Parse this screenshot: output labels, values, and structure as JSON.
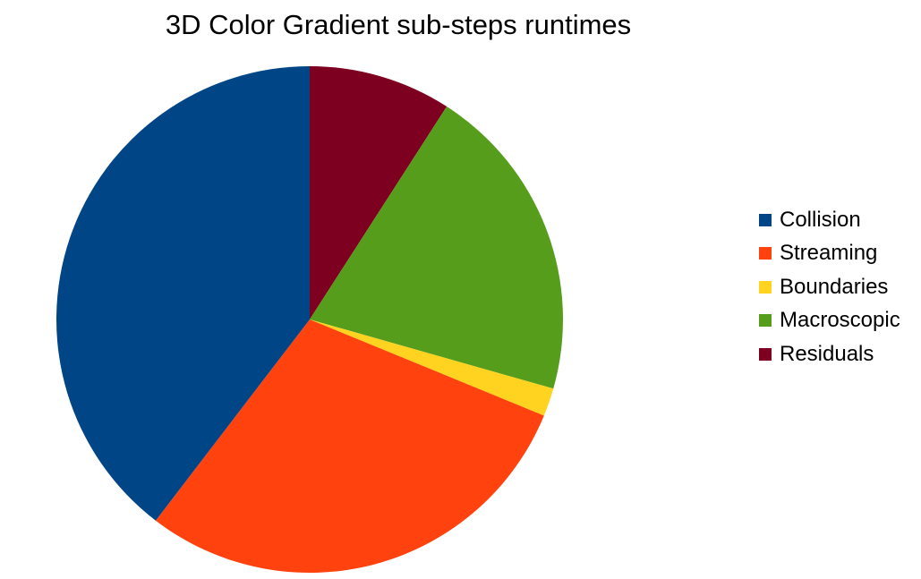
{
  "chart_data": {
    "type": "pie",
    "title": "3D Color Gradient sub-steps runtimes",
    "start_angle_deg": 0,
    "direction": "clockwise",
    "legend_position": "right",
    "slices": [
      {
        "label": "Residuals",
        "value": 9.1,
        "color": "#7E0021"
      },
      {
        "label": "Macroscopic",
        "value": 20.3,
        "color": "#579D1C"
      },
      {
        "label": "Boundaries",
        "value": 1.8,
        "color": "#FFD320"
      },
      {
        "label": "Streaming",
        "value": 29.2,
        "color": "#FF420E"
      },
      {
        "label": "Collision",
        "value": 39.6,
        "color": "#004586"
      }
    ],
    "legend": [
      {
        "label": "Collision",
        "color": "#004586"
      },
      {
        "label": "Streaming",
        "color": "#FF420E"
      },
      {
        "label": "Boundaries",
        "color": "#FFD320"
      },
      {
        "label": "Macroscopic",
        "color": "#579D1C"
      },
      {
        "label": "Residuals",
        "color": "#7E0021"
      }
    ]
  }
}
